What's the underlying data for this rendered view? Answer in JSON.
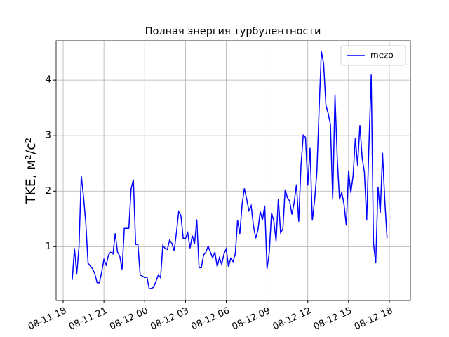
{
  "chart_data": {
    "type": "line",
    "title": "Полная энергия турбулентности",
    "y_label": "TKE, м²/с²",
    "x": [
      "08-11 18:40",
      "08-11 18:50",
      "08-11 19:00",
      "08-11 19:10",
      "08-11 19:20",
      "08-11 19:30",
      "08-11 19:40",
      "08-11 19:50",
      "08-11 20:00",
      "08-11 20:10",
      "08-11 20:20",
      "08-11 20:30",
      "08-11 20:40",
      "08-11 20:50",
      "08-11 21:00",
      "08-11 21:10",
      "08-11 21:20",
      "08-11 21:30",
      "08-11 21:40",
      "08-11 21:50",
      "08-11 22:00",
      "08-11 22:10",
      "08-11 22:20",
      "08-11 22:30",
      "08-11 22:40",
      "08-11 22:50",
      "08-11 23:00",
      "08-11 23:10",
      "08-11 23:20",
      "08-11 23:30",
      "08-11 23:40",
      "08-11 23:50",
      "08-12 00:00",
      "08-12 00:10",
      "08-12 00:20",
      "08-12 00:30",
      "08-12 00:40",
      "08-12 00:50",
      "08-12 01:00",
      "08-12 01:10",
      "08-12 01:20",
      "08-12 01:30",
      "08-12 01:40",
      "08-12 01:50",
      "08-12 02:00",
      "08-12 02:10",
      "08-12 02:20",
      "08-12 02:30",
      "08-12 02:40",
      "08-12 02:50",
      "08-12 03:00",
      "08-12 03:10",
      "08-12 03:20",
      "08-12 03:30",
      "08-12 03:40",
      "08-12 03:50",
      "08-12 04:00",
      "08-12 04:10",
      "08-12 04:20",
      "08-12 04:30",
      "08-12 04:40",
      "08-12 04:50",
      "08-12 05:00",
      "08-12 05:10",
      "08-12 05:20",
      "08-12 05:30",
      "08-12 05:40",
      "08-12 05:50",
      "08-12 06:00",
      "08-12 06:10",
      "08-12 06:20",
      "08-12 06:30",
      "08-12 06:40",
      "08-12 06:50",
      "08-12 07:00",
      "08-12 07:10",
      "08-12 07:20",
      "08-12 07:30",
      "08-12 07:40",
      "08-12 07:50",
      "08-12 08:00",
      "08-12 08:10",
      "08-12 08:20",
      "08-12 08:30",
      "08-12 08:40",
      "08-12 08:50",
      "08-12 09:00",
      "08-12 09:10",
      "08-12 09:20",
      "08-12 09:30",
      "08-12 09:40",
      "08-12 09:50",
      "08-12 10:00",
      "08-12 10:10",
      "08-12 10:20",
      "08-12 10:30",
      "08-12 10:40",
      "08-12 10:50",
      "08-12 11:00",
      "08-12 11:10",
      "08-12 11:20",
      "08-12 11:30",
      "08-12 11:40",
      "08-12 11:50",
      "08-12 12:00",
      "08-12 12:10",
      "08-12 12:20",
      "08-12 12:30",
      "08-12 12:40",
      "08-12 12:50",
      "08-12 13:00",
      "08-12 13:10",
      "08-12 13:20",
      "08-12 13:30",
      "08-12 13:40",
      "08-12 13:50",
      "08-12 14:00",
      "08-12 14:10",
      "08-12 14:20",
      "08-12 14:30",
      "08-12 14:40",
      "08-12 14:50",
      "08-12 15:00",
      "08-12 15:10",
      "08-12 15:20",
      "08-12 15:30",
      "08-12 15:40",
      "08-12 15:50",
      "08-12 16:00",
      "08-12 16:10",
      "08-12 16:20",
      "08-12 16:30",
      "08-12 16:40",
      "08-12 16:50",
      "08-12 17:00",
      "08-12 17:10",
      "08-12 17:20",
      "08-12 17:30",
      "08-12 17:40",
      "08-12 17:50"
    ],
    "series": [
      {
        "name": "mezo",
        "color": "#0000ff",
        "values": [
          0.4,
          0.97,
          0.51,
          1.0,
          2.28,
          1.9,
          1.43,
          0.7,
          0.65,
          0.6,
          0.51,
          0.35,
          0.35,
          0.54,
          0.77,
          0.67,
          0.85,
          0.9,
          0.87,
          1.24,
          0.9,
          0.83,
          0.59,
          1.33,
          1.33,
          1.33,
          2.04,
          2.21,
          1.04,
          1.04,
          0.49,
          0.47,
          0.44,
          0.45,
          0.24,
          0.25,
          0.27,
          0.38,
          0.49,
          0.44,
          1.02,
          0.97,
          0.95,
          1.12,
          1.06,
          0.93,
          1.25,
          1.63,
          1.56,
          1.15,
          1.15,
          1.25,
          0.97,
          1.2,
          1.05,
          1.49,
          0.62,
          0.62,
          0.85,
          0.9,
          1.01,
          0.9,
          0.8,
          0.9,
          0.64,
          0.8,
          0.68,
          0.87,
          0.96,
          0.64,
          0.79,
          0.73,
          0.87,
          1.48,
          1.23,
          1.76,
          2.05,
          1.86,
          1.65,
          1.74,
          1.38,
          1.15,
          1.3,
          1.63,
          1.48,
          1.74,
          0.6,
          0.9,
          1.61,
          1.46,
          1.1,
          1.86,
          1.25,
          1.32,
          2.03,
          1.88,
          1.82,
          1.58,
          1.8,
          2.12,
          1.45,
          2.46,
          3.01,
          2.97,
          2.1,
          2.78,
          1.47,
          1.83,
          2.34,
          3.48,
          4.52,
          4.29,
          3.55,
          3.4,
          3.2,
          1.85,
          3.74,
          2.6,
          1.85,
          1.98,
          1.76,
          1.38,
          2.37,
          1.97,
          2.28,
          2.96,
          2.46,
          3.19,
          2.6,
          2.34,
          1.47,
          2.83,
          4.1,
          1.06,
          0.7,
          2.08,
          1.61,
          2.69,
          1.83,
          1.15
        ]
      }
    ],
    "xlim": [
      "08-11 17:29",
      "08-12 19:33"
    ],
    "xticks": [
      "08-11 18",
      "08-11 21",
      "08-12 00",
      "08-12 03",
      "08-12 06",
      "08-12 09",
      "08-12 12",
      "08-12 15",
      "08-12 18"
    ],
    "ylim": [
      0.03,
      4.71
    ],
    "yticks": [
      1,
      2,
      3,
      4
    ],
    "grid": true,
    "legend": "upper right"
  }
}
